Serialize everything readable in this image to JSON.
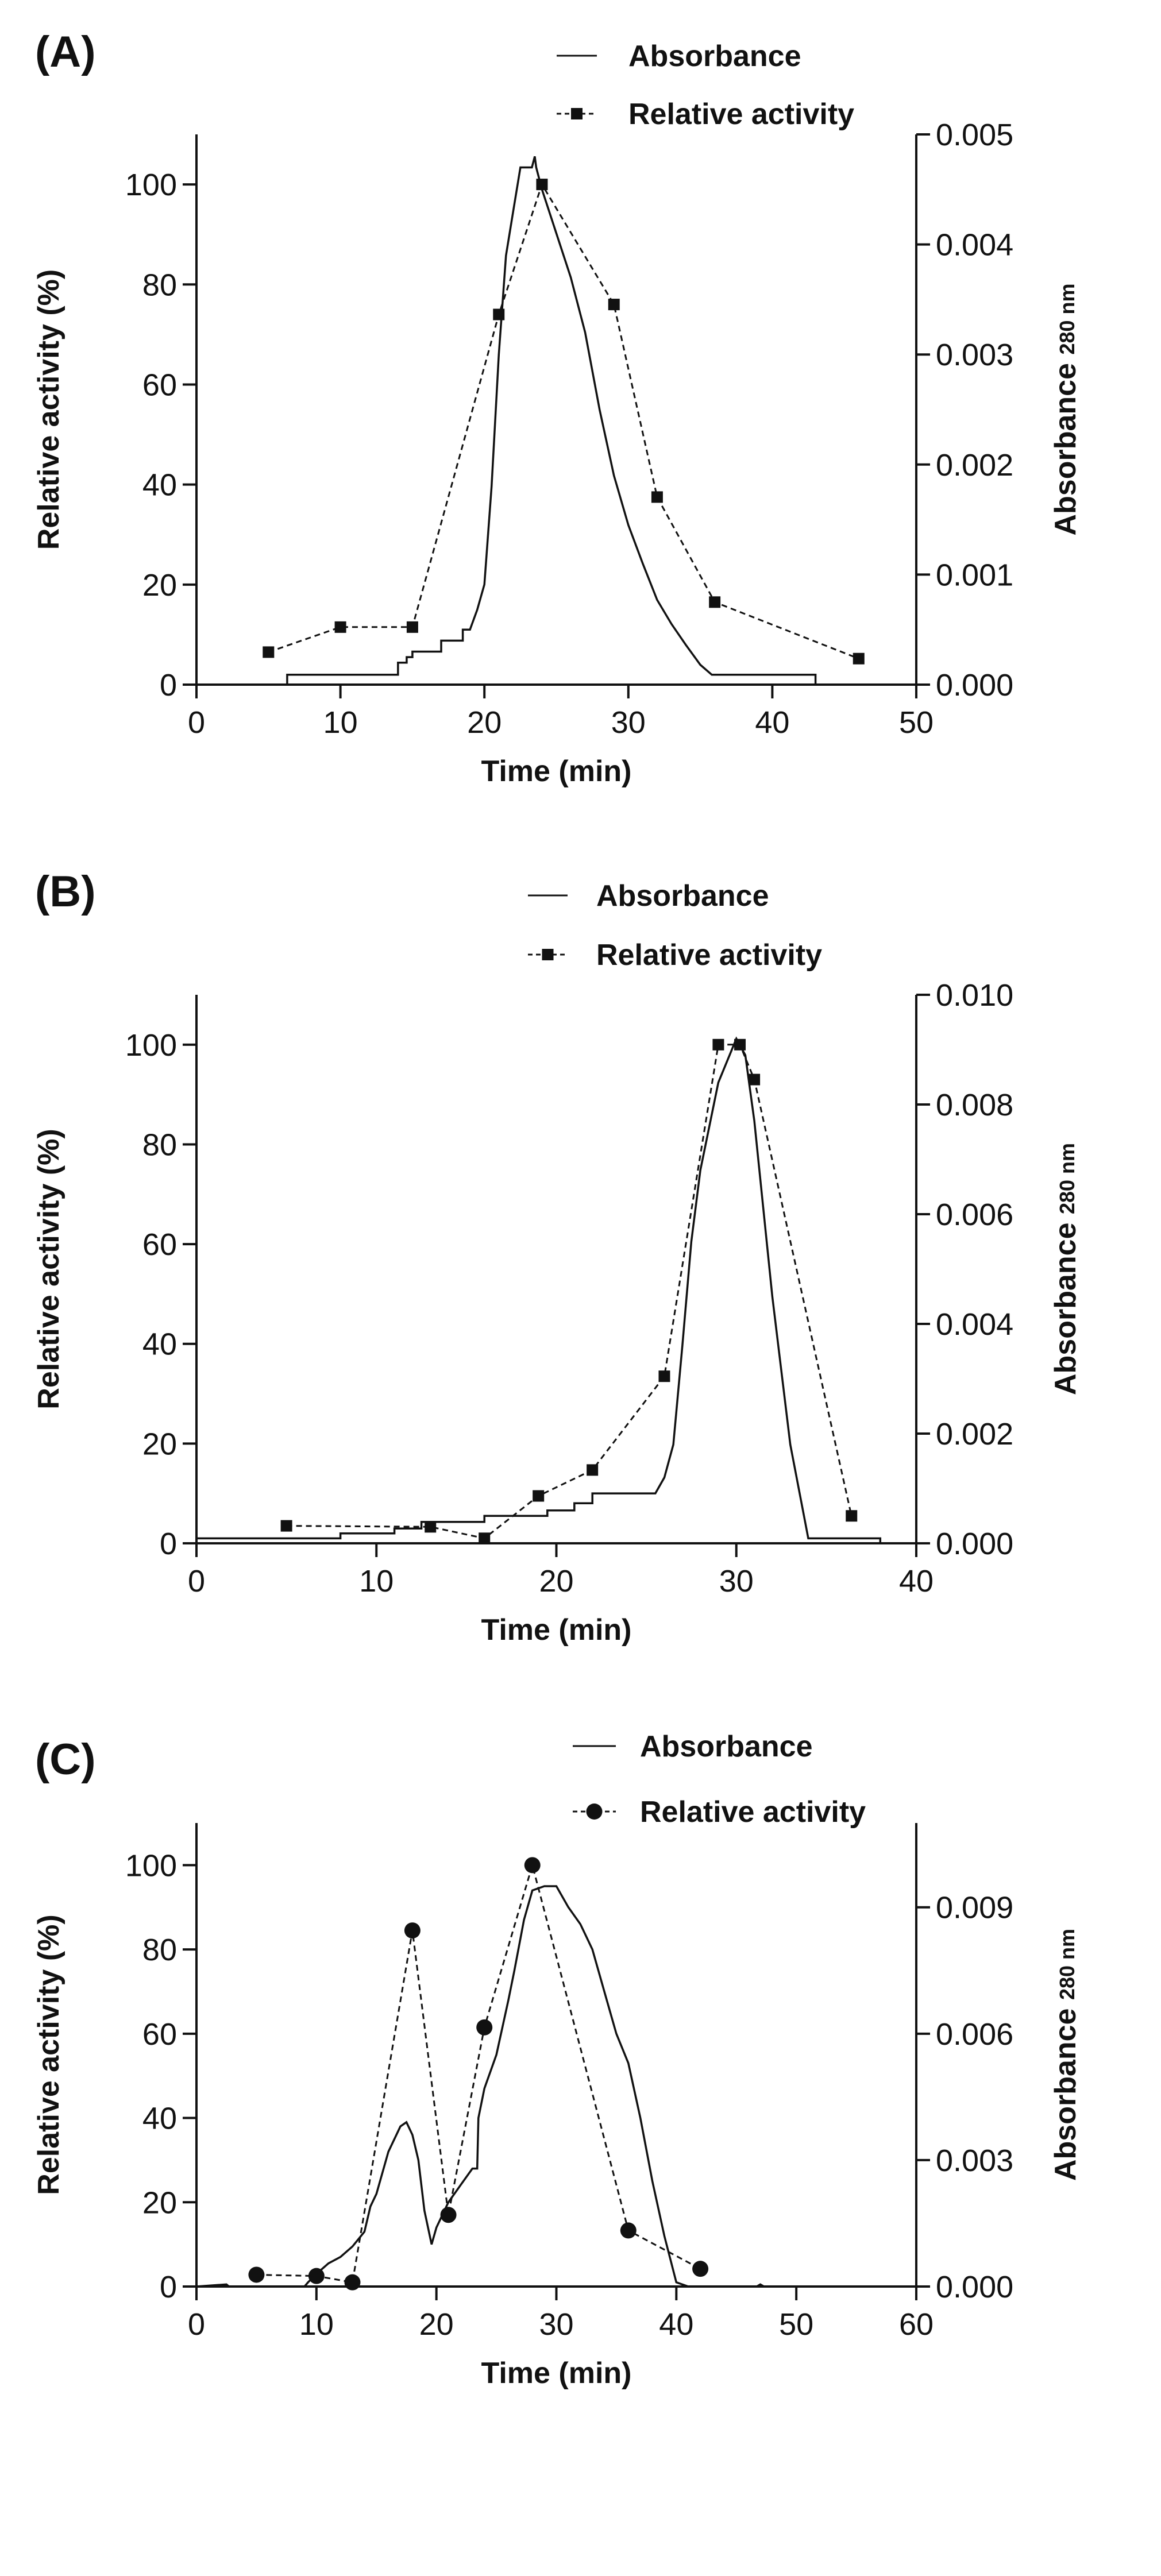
{
  "chart_data": [
    {
      "panel_label": "(A)",
      "type": "line",
      "x_label": "Time (min)",
      "y_label": "Relative activity (%)",
      "y2_label": "Absorbance",
      "y2_label_sub": "280 nm",
      "xlim": [
        0,
        50
      ],
      "xticks": [
        "0",
        "10",
        "20",
        "30",
        "40",
        "50"
      ],
      "ylim": [
        0,
        110
      ],
      "yticks": [
        "0",
        "20",
        "40",
        "60",
        "80",
        "100"
      ],
      "y2lim": [
        0,
        0.005
      ],
      "y2ticks": [
        "0.000",
        "0.001",
        "0.002",
        "0.003",
        "0.004",
        "0.005"
      ],
      "legend_placement": "top",
      "grid": false,
      "series": [
        {
          "name": "Absorbance",
          "axis": "right",
          "style": "solid",
          "color": "#111111",
          "x": [
            0,
            6.3,
            6.3,
            14,
            14,
            14.6,
            14.6,
            15,
            15,
            17,
            17,
            18.5,
            18.5,
            19,
            19.5,
            20,
            20.5,
            21,
            21.5,
            22,
            22.5,
            23.3,
            23.5,
            23.6,
            24,
            25,
            26,
            27,
            28,
            29,
            30,
            31,
            32,
            33,
            34,
            35,
            35.8,
            43,
            43
          ],
          "y": [
            0,
            0,
            9e-05,
            9e-05,
            0.0002,
            0.0002,
            0.00025,
            0.00025,
            0.0003,
            0.0003,
            0.0004,
            0.0004,
            0.0005,
            0.0005,
            0.00068,
            0.00091,
            0.0018,
            0.003,
            0.0039,
            0.0043,
            0.0047,
            0.0047,
            0.0048,
            0.0047,
            0.0045,
            0.0041,
            0.0037,
            0.0032,
            0.0025,
            0.0019,
            0.00145,
            0.0011,
            0.00077,
            0.00055,
            0.00036,
            0.00018,
            9e-05,
            9e-05,
            0
          ]
        },
        {
          "name": "Relative activity",
          "axis": "left",
          "style": "dashed",
          "marker": "square",
          "color": "#111111",
          "x": [
            5,
            10,
            15,
            21,
            24,
            29,
            32,
            36,
            46
          ],
          "y": [
            6.5,
            11.5,
            11.5,
            74,
            100,
            76,
            37.5,
            16.5,
            5.2
          ]
        }
      ]
    },
    {
      "panel_label": "(B)",
      "type": "line",
      "x_label": "Time (min)",
      "y_label": "Relative activity (%)",
      "y2_label": "Absorbance",
      "y2_label_sub": "280 nm",
      "xlim": [
        0,
        40
      ],
      "xticks": [
        "0",
        "10",
        "20",
        "30",
        "40"
      ],
      "ylim": [
        0,
        110
      ],
      "yticks": [
        "0",
        "20",
        "40",
        "60",
        "80",
        "100"
      ],
      "y2lim": [
        0,
        0.01
      ],
      "y2ticks": [
        "0.000",
        "0.002",
        "0.004",
        "0.006",
        "0.008",
        "0.010"
      ],
      "legend_placement": "top",
      "grid": false,
      "series": [
        {
          "name": "Absorbance",
          "axis": "right",
          "style": "solid",
          "color": "#111111",
          "x": [
            0,
            8,
            8,
            11,
            11,
            12.5,
            12.5,
            16,
            16,
            19.5,
            19.5,
            21,
            21,
            22,
            22,
            25.5,
            26,
            26.5,
            27,
            27.5,
            28,
            29,
            30,
            30.5,
            31,
            32,
            33,
            34,
            38,
            38
          ],
          "y": [
            9e-05,
            9e-05,
            0.00018,
            0.00018,
            0.00027,
            0.00027,
            0.00039,
            0.00039,
            0.0005,
            0.0005,
            0.0006,
            0.0006,
            0.00073,
            0.00073,
            0.00091,
            0.00091,
            0.0012,
            0.0018,
            0.0036,
            0.0055,
            0.0068,
            0.0084,
            0.0092,
            0.0089,
            0.0077,
            0.0045,
            0.0018,
            9e-05,
            9e-05,
            0
          ]
        },
        {
          "name": "Relative activity",
          "axis": "left",
          "style": "dashed",
          "marker": "square",
          "color": "#111111",
          "x": [
            5,
            13,
            16,
            19,
            22,
            26,
            29,
            30.2,
            31,
            36.4
          ],
          "y": [
            3.5,
            3.3,
            1,
            9.5,
            14.7,
            33.5,
            100,
            100,
            93,
            5.5
          ]
        }
      ]
    },
    {
      "panel_label": "(C)",
      "type": "line",
      "x_label": "Time (min)",
      "y_label": "Relative activity (%)",
      "y2_label": "Absorbance",
      "y2_label_sub": "280 nm",
      "xlim": [
        0,
        60
      ],
      "xticks": [
        "0",
        "10",
        "20",
        "30",
        "40",
        "50",
        "60"
      ],
      "ylim": [
        0,
        110
      ],
      "yticks": [
        "0",
        "20",
        "40",
        "60",
        "80",
        "100"
      ],
      "y2lim": [
        0,
        0.011
      ],
      "y2ticks": [
        "0.000",
        "0.003",
        "0.006",
        "0.009"
      ],
      "legend_placement": "top",
      "grid": false,
      "series": [
        {
          "name": "Absorbance",
          "axis": "right",
          "style": "solid",
          "color": "#111111",
          "x": [
            0,
            2.5,
            2.7,
            9,
            9.3,
            10,
            11,
            12,
            13,
            14,
            14.5,
            15,
            16,
            17,
            17.5,
            18,
            18.5,
            19,
            19.6,
            20,
            21,
            22,
            23,
            23.4,
            23.5,
            24,
            25,
            26,
            26.5,
            27.3,
            28,
            29,
            30,
            31,
            32,
            33,
            34,
            35,
            36,
            37,
            38,
            39,
            40,
            41,
            46.7,
            47,
            47.3
          ],
          "y": [
            0,
            5e-05,
            0,
            0,
            0.0001,
            0.0003,
            0.00055,
            0.0007,
            0.00095,
            0.0013,
            0.0019,
            0.0022,
            0.0032,
            0.0038,
            0.0039,
            0.0036,
            0.003,
            0.0018,
            0.001,
            0.0014,
            0.002,
            0.0024,
            0.0028,
            0.0028,
            0.004,
            0.0047,
            0.0055,
            0.0068,
            0.0075,
            0.0087,
            0.0094,
            0.0095,
            0.0095,
            0.009,
            0.0086,
            0.008,
            0.007,
            0.006,
            0.0053,
            0.004,
            0.0025,
            0.0012,
            0.0001,
            0,
            0,
            5e-05,
            0
          ]
        },
        {
          "name": "Relative activity",
          "axis": "left",
          "style": "dashed",
          "marker": "circle",
          "color": "#111111",
          "x": [
            5,
            10,
            13,
            18,
            21,
            24,
            28,
            36,
            42
          ],
          "y": [
            2.8,
            2.5,
            1,
            84.5,
            17,
            61.5,
            100,
            13.3,
            4.2
          ]
        }
      ]
    }
  ]
}
